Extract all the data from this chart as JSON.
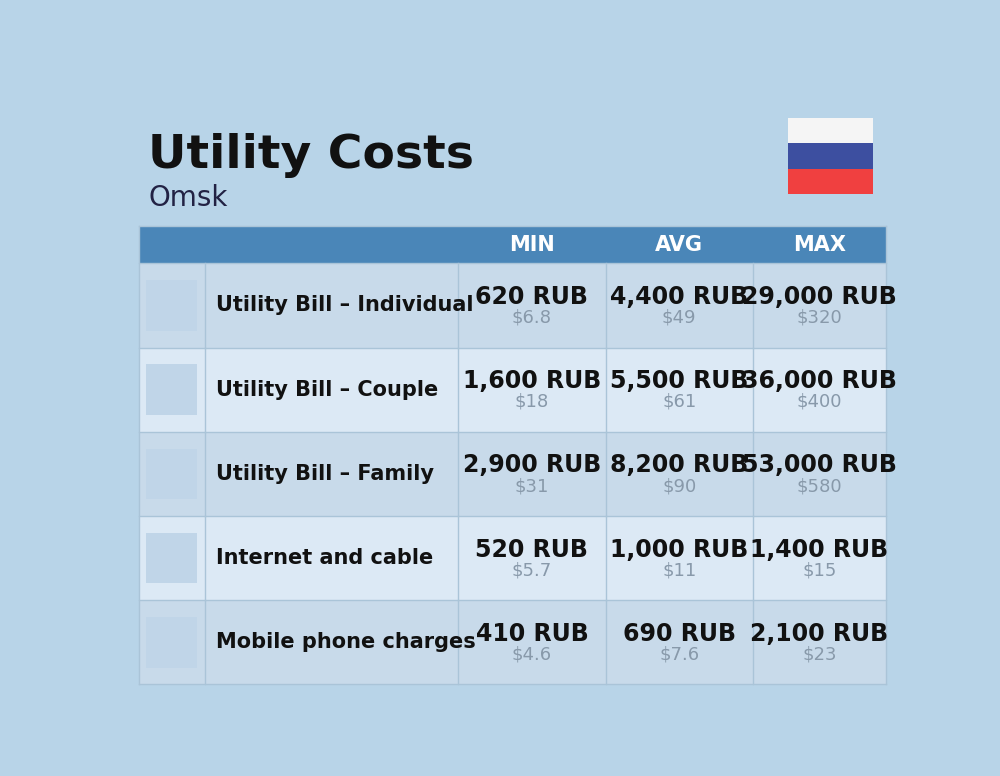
{
  "title": "Utility Costs",
  "subtitle": "Omsk",
  "bg_color": "#b8d4e8",
  "header_bg": "#4a86b8",
  "header_text_color": "#ffffff",
  "row_bg_even": "#c8daea",
  "row_bg_odd": "#dce9f5",
  "divider_color": "#aac4d8",
  "col_headers": [
    "MIN",
    "AVG",
    "MAX"
  ],
  "rows": [
    {
      "label": "Utility Bill – Individual",
      "min_rub": "620 RUB",
      "min_usd": "$6.8",
      "avg_rub": "4,400 RUB",
      "avg_usd": "$49",
      "max_rub": "29,000 RUB",
      "max_usd": "$320"
    },
    {
      "label": "Utility Bill – Couple",
      "min_rub": "1,600 RUB",
      "min_usd": "$18",
      "avg_rub": "5,500 RUB",
      "avg_usd": "$61",
      "max_rub": "36,000 RUB",
      "max_usd": "$400"
    },
    {
      "label": "Utility Bill – Family",
      "min_rub": "2,900 RUB",
      "min_usd": "$31",
      "avg_rub": "8,200 RUB",
      "avg_usd": "$90",
      "max_rub": "53,000 RUB",
      "max_usd": "$580"
    },
    {
      "label": "Internet and cable",
      "min_rub": "520 RUB",
      "min_usd": "$5.7",
      "avg_rub": "1,000 RUB",
      "avg_usd": "$11",
      "max_rub": "1,400 RUB",
      "max_usd": "$15"
    },
    {
      "label": "Mobile phone charges",
      "min_rub": "410 RUB",
      "min_usd": "$4.6",
      "avg_rub": "690 RUB",
      "avg_usd": "$7.6",
      "max_rub": "2,100 RUB",
      "max_usd": "$23"
    }
  ],
  "flag_colors": [
    "#f5f5f5",
    "#3d4fa0",
    "#f04040"
  ],
  "title_fontsize": 34,
  "subtitle_fontsize": 20,
  "header_fontsize": 15,
  "label_fontsize": 15,
  "value_fontsize": 17,
  "usd_fontsize": 13,
  "usd_color": "#8899aa"
}
